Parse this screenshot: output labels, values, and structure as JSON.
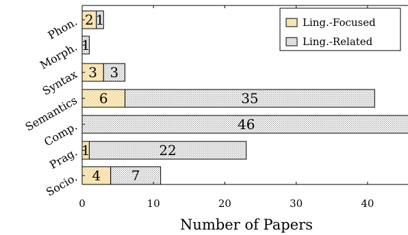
{
  "chart_data": {
    "type": "bar",
    "orientation": "horizontal",
    "stacked": true,
    "categories": [
      "Phon.",
      "Morph.",
      "Syntax",
      "Semantics",
      "Comp.",
      "Prag.",
      "Socio."
    ],
    "series": [
      {
        "name": "Ling.-Focused",
        "values": [
          2,
          0,
          3,
          6,
          0,
          1,
          4
        ],
        "color": "#fff2cc",
        "pattern": "crosshatch"
      },
      {
        "name": "Ling.-Related",
        "values": [
          1,
          1,
          3,
          35,
          46,
          22,
          7
        ],
        "color": "#e6e6e6",
        "pattern": "dots"
      }
    ],
    "xlabel": "Number of Papers",
    "ylabel": "",
    "xlim": [
      0,
      45
    ],
    "xticks": [
      0,
      10,
      20,
      30,
      40
    ],
    "grid": false,
    "legend_position": "top-right"
  }
}
